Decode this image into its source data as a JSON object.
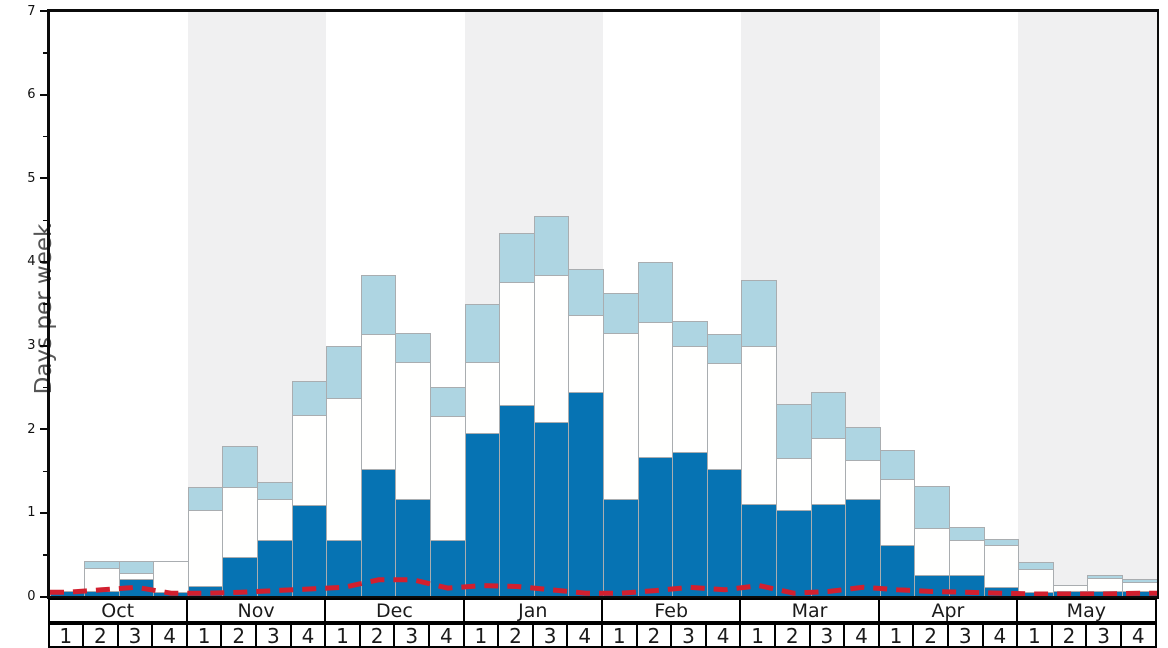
{
  "chart_data": {
    "type": "bar",
    "title": "",
    "xlabel": "",
    "ylabel": "Days per week",
    "ylim": [
      0,
      7
    ],
    "y_tick_labels": [
      "0",
      "1",
      "2",
      "3",
      "4",
      "5",
      "6",
      "7"
    ],
    "y_minor_step": 0.5,
    "grid": false,
    "legend": "none",
    "months": [
      "Oct",
      "Nov",
      "Dec",
      "Jan",
      "Feb",
      "Mar",
      "Apr",
      "May"
    ],
    "week_labels": [
      "1",
      "2",
      "3",
      "4"
    ],
    "shaded_month_indices": [
      1,
      3,
      5,
      7
    ],
    "categories": [
      "Oct-1",
      "Oct-2",
      "Oct-3",
      "Oct-4",
      "Nov-1",
      "Nov-2",
      "Nov-3",
      "Nov-4",
      "Dec-1",
      "Dec-2",
      "Dec-3",
      "Dec-4",
      "Jan-1",
      "Jan-2",
      "Jan-3",
      "Jan-4",
      "Feb-1",
      "Feb-2",
      "Feb-3",
      "Feb-4",
      "Mar-1",
      "Mar-2",
      "Mar-3",
      "Mar-4",
      "Apr-1",
      "Apr-2",
      "Apr-3",
      "Apr-4",
      "May-1",
      "May-2",
      "May-3",
      "May-4"
    ],
    "series": [
      {
        "name": "dark-blue-days",
        "role": "stacked-bar-bottom-cumulative-top",
        "color": "#0673b3",
        "values": [
          0.06,
          0.06,
          0.21,
          0.05,
          0.12,
          0.47,
          0.68,
          1.09,
          0.67,
          1.52,
          1.17,
          0.68,
          1.95,
          2.29,
          2.09,
          2.44,
          1.17,
          1.67,
          1.73,
          1.53,
          1.1,
          1.03,
          1.1,
          1.17,
          0.62,
          0.26,
          0.26,
          0.11,
          0.05,
          0.07,
          0.07,
          0.07
        ]
      },
      {
        "name": "white-days",
        "role": "stacked-bar-middle-cumulative-top",
        "color": "#fffffe",
        "values": [
          0.06,
          0.34,
          0.28,
          0.42,
          1.04,
          1.31,
          1.17,
          2.17,
          2.37,
          3.14,
          2.8,
          2.16,
          2.8,
          3.76,
          3.84,
          3.36,
          3.15,
          3.28,
          2.99,
          2.79,
          3.0,
          1.66,
          1.9,
          1.63,
          1.4,
          0.82,
          0.68,
          0.62,
          0.33,
          0.14,
          0.22,
          0.17
        ]
      },
      {
        "name": "light-blue-days",
        "role": "stacked-bar-top-cumulative-top",
        "color": "#aed5e2",
        "values": [
          0.06,
          0.42,
          0.42,
          0.42,
          1.31,
          1.8,
          1.37,
          2.58,
          3.0,
          3.84,
          3.15,
          2.51,
          3.5,
          4.34,
          4.55,
          3.92,
          3.63,
          4.0,
          3.29,
          3.14,
          3.78,
          2.3,
          2.45,
          2.03,
          1.75,
          1.32,
          0.83,
          0.69,
          0.41,
          0.14,
          0.26,
          0.21
        ]
      },
      {
        "name": "red-dashed-line",
        "role": "line-overlay",
        "style": "dashed",
        "color": "#d2202f",
        "values": [
          0.05,
          0.08,
          0.11,
          0.04,
          0.04,
          0.05,
          0.07,
          0.09,
          0.11,
          0.2,
          0.2,
          0.1,
          0.13,
          0.12,
          0.08,
          0.04,
          0.04,
          0.07,
          0.11,
          0.08,
          0.13,
          0.04,
          0.06,
          0.11,
          0.08,
          0.06,
          0.05,
          0.04,
          0.03,
          0.03,
          0.03,
          0.04
        ]
      }
    ],
    "colors": {
      "dark_blue": "#0673b3",
      "light_blue": "#aed5e2",
      "white_bar": "#fffffe",
      "bar_border": "#a9adb0",
      "red_line": "#d2202f",
      "shaded_band": "#f0f0f1",
      "axis": "#0b0b0b",
      "ylabel_text": "#555555"
    }
  }
}
